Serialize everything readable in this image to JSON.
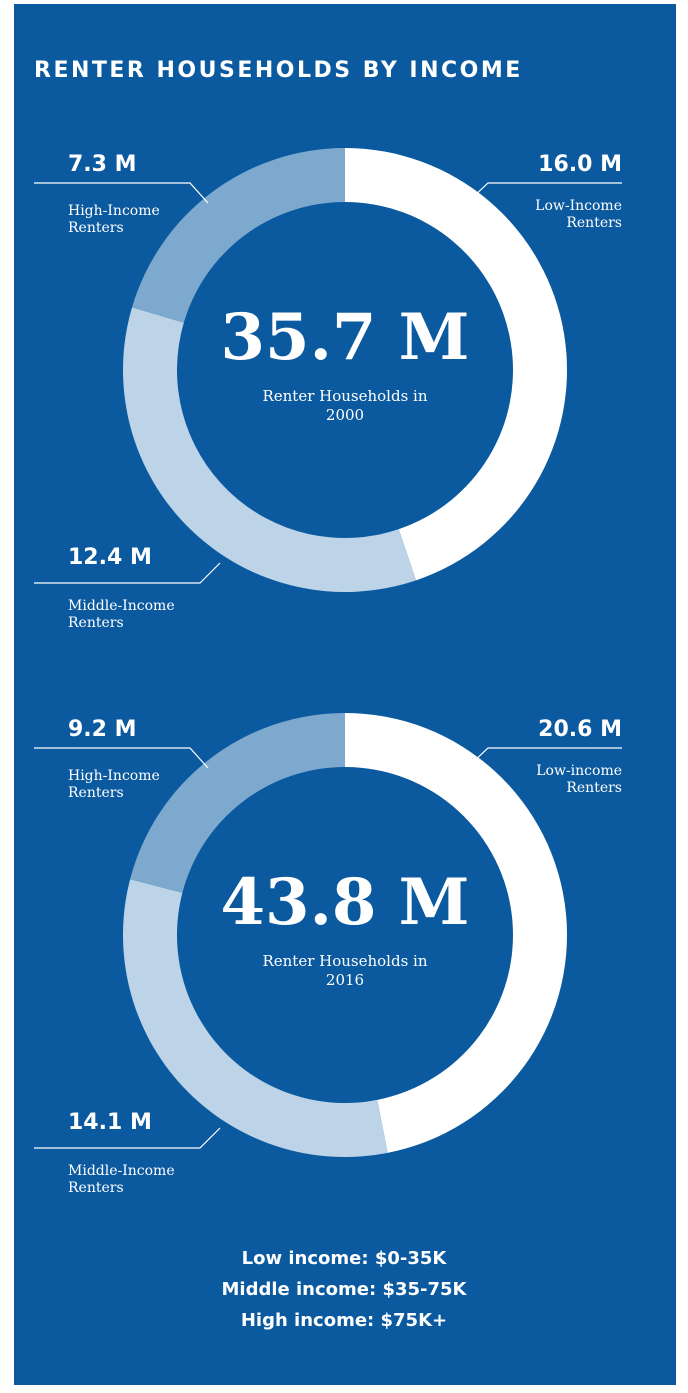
{
  "title": "RENTER HOUSEHOLDS BY INCOME",
  "chart_data": [
    {
      "type": "pie",
      "donut": true,
      "categories": [
        "Low-Income Renters",
        "Middle-Income Renters",
        "High-Income Renters"
      ],
      "values": [
        16.0,
        12.4,
        7.3
      ],
      "value_labels": [
        "16.0 M",
        "12.4 M",
        "7.3 M"
      ],
      "colors": [
        "#ffffff",
        "#bdd3e7",
        "#7ea9ce"
      ],
      "total": {
        "value": 35.7,
        "label": "35.7 M"
      },
      "center_label": "Renter Households in 2000"
    },
    {
      "type": "pie",
      "donut": true,
      "categories": [
        "Low-income Renters",
        "Middle-Income Renters",
        "High-Income Renters"
      ],
      "values": [
        20.6,
        14.1,
        9.2
      ],
      "value_labels": [
        "20.6 M",
        "14.1 M",
        "9.2 M"
      ],
      "colors": [
        "#ffffff",
        "#bdd3e7",
        "#7ea9ce"
      ],
      "total": {
        "value": 43.8,
        "label": "43.8 M"
      },
      "center_label": "Renter Households in 2016"
    }
  ],
  "notes": [
    "Low income: $0-35K",
    "Middle income: $35-75K",
    "High income: $75K+"
  ]
}
